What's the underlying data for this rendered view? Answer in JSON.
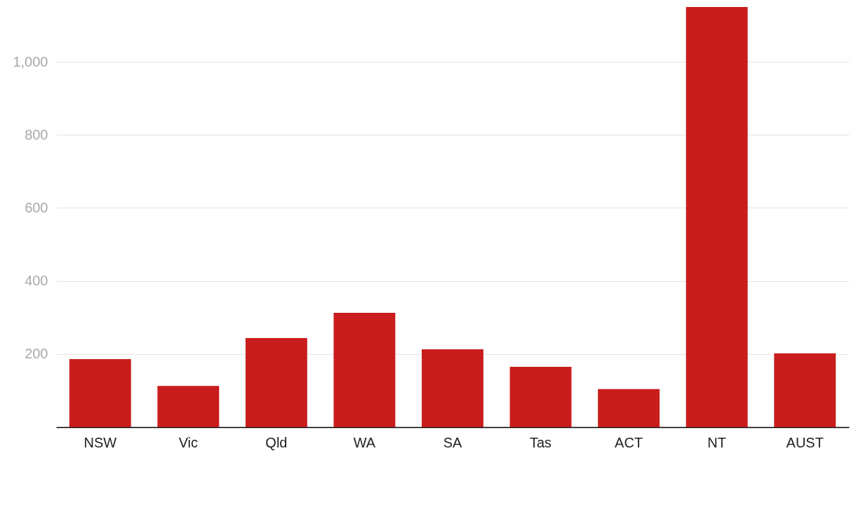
{
  "chart_data": {
    "type": "bar",
    "categories": [
      "NSW",
      "Vic",
      "Qld",
      "WA",
      "SA",
      "Tas",
      "ACT",
      "NT",
      "AUST"
    ],
    "values": [
      186,
      113,
      244,
      313,
      213,
      165,
      104,
      1150,
      202
    ],
    "color": "#c91d1d",
    "ylim": [
      0,
      1150
    ],
    "yticks": [
      200,
      400,
      600,
      800,
      {
        "value": 1000,
        "label": "1,000"
      }
    ],
    "grid": "y"
  }
}
